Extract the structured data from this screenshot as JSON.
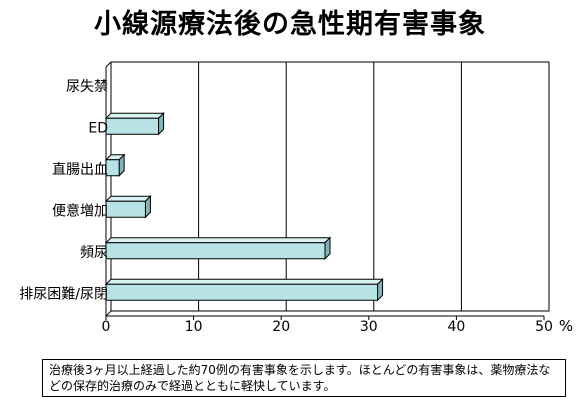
{
  "chart_data": {
    "type": "bar",
    "orientation": "horizontal",
    "title": "小線源療法後の急性期有害事象",
    "categories": [
      "尿失禁",
      "ED",
      "直腸出血",
      "便意増加",
      "頻尿",
      "排尿困難/尿閉"
    ],
    "values": [
      0,
      6,
      1.5,
      4.5,
      25,
      31
    ],
    "xlim": [
      0,
      50
    ],
    "xticks": [
      0,
      10,
      20,
      30,
      40,
      50
    ],
    "tick_labels": [
      "0",
      "10",
      "20",
      "30",
      "40",
      "50"
    ],
    "x_unit_label": "%",
    "grid": "vertical",
    "legend": "none",
    "bar_color": "#b7e3e7",
    "bar_side_color": "#7fb4b9",
    "bar_top_color": "#d9f2f3"
  },
  "note": "治療後3ヶ月以上経過した約70例の有害事象を示します。ほとんどの有害事象は、薬物療法などの保存的治療のみで経過とともに軽快しています。"
}
